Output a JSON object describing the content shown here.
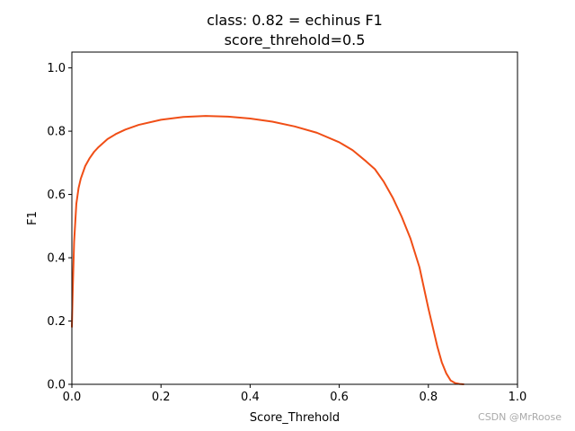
{
  "chart_data": {
    "type": "line",
    "title_lines": [
      "class: 0.82 = echinus F1",
      "score_threhold=0.5"
    ],
    "xlabel": "Score_Threhold",
    "ylabel": "F1",
    "xlim": [
      0,
      1
    ],
    "ylim": [
      0,
      1.05
    ],
    "xticks": [
      "0.0",
      "0.2",
      "0.4",
      "0.6",
      "0.8",
      "1.0"
    ],
    "yticks": [
      "0.0",
      "0.2",
      "0.4",
      "0.6",
      "0.8",
      "1.0"
    ],
    "grid": false,
    "series": [
      {
        "color": "#f04e16",
        "x": [
          0.0,
          0.002,
          0.005,
          0.01,
          0.015,
          0.02,
          0.03,
          0.04,
          0.05,
          0.06,
          0.08,
          0.1,
          0.12,
          0.15,
          0.2,
          0.25,
          0.3,
          0.35,
          0.4,
          0.45,
          0.5,
          0.55,
          0.6,
          0.63,
          0.66,
          0.68,
          0.7,
          0.72,
          0.74,
          0.76,
          0.78,
          0.8,
          0.82,
          0.83,
          0.84,
          0.85,
          0.86,
          0.87,
          0.88
        ],
        "y": [
          0.18,
          0.3,
          0.45,
          0.57,
          0.62,
          0.65,
          0.69,
          0.715,
          0.735,
          0.75,
          0.775,
          0.792,
          0.805,
          0.82,
          0.836,
          0.845,
          0.848,
          0.846,
          0.84,
          0.83,
          0.815,
          0.795,
          0.765,
          0.74,
          0.705,
          0.68,
          0.64,
          0.59,
          0.53,
          0.46,
          0.37,
          0.24,
          0.12,
          0.07,
          0.035,
          0.012,
          0.004,
          0.001,
          0.0
        ]
      }
    ]
  },
  "watermark": "CSDN @MrRoose"
}
